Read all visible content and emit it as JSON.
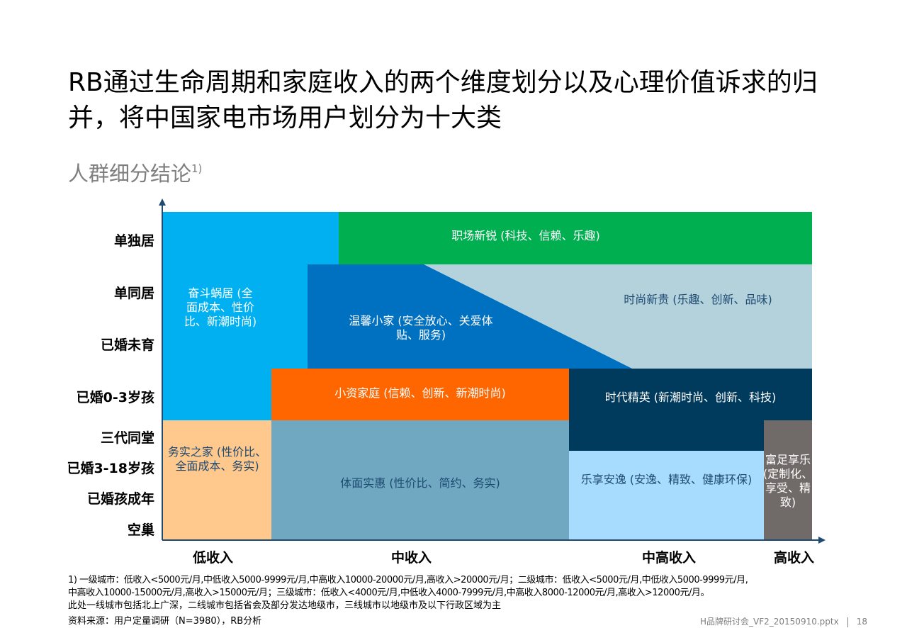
{
  "title": "RB通过生命周期和家庭收入的两个维度划分以及心理价值诉求的归并，将中国家电市场用户划分为十大类",
  "subtitle": "人群细分结论",
  "subtitle_note": "1)",
  "y_axis_labels": [
    "单独居",
    "单同居",
    "已婚未育",
    "已婚0-3岁孩",
    "三代同堂",
    "已婚3-18岁孩",
    "已婚孩成年",
    "空巢"
  ],
  "x_axis_labels": [
    "低收入",
    "中收入",
    "中高收入",
    "高收入"
  ],
  "segments": {
    "zhichang": "职场新锐 (科技、信赖、乐趣)",
    "fendou": [
      "奋斗蜗居 (全",
      "面成本、性价",
      "比、新潮时尚)"
    ],
    "wenxin": [
      "温馨小家 (安全放心、关爱体",
      "贴、服务)"
    ],
    "shishang": "时尚新贵 (乐趣、创新、品味)",
    "xiaozi": "小资家庭 (信赖、创新、新潮时尚)",
    "shidai": "时代精英 (新潮时尚、创新、科技)",
    "wushi": [
      "务实之家 (性价比、",
      "全面成本、务实)"
    ],
    "timian": "体面实惠 (性价比、简约、务实)",
    "lexiang": "乐享安逸 (安逸、精致、健康环保)",
    "fuzu": [
      "富足享乐",
      "(定制化、",
      "享受、精",
      "致)"
    ]
  },
  "colors": {
    "zhichang": "#00b050",
    "fendou": "#00b0f0",
    "wenxin": "#0070c0",
    "shishang": "#b4d2dc",
    "xiaozi": "#ff6600",
    "shidai": "#003a5c",
    "wushi": "#ffc88c",
    "timian": "#6fa8c0",
    "lexiang": "#a8dcff",
    "fuzu": "#706a68",
    "axis": "#1f4a72"
  },
  "footnotes": [
    "1) 一级城市：低收入<5000元/月,中低收入5000-9999元/月,中高收入10000-20000元/月,高收入>20000元/月；二级城市：低收入<5000元/月,中低收入5000-9999元/月,",
    "中高收入10000-15000元/月,高收入>15000元/月；三级城市：低收入<4000元/月,中低收入4000-7999元/月,中高收入8000-12000元/月,高收入>12000元/月。",
    "此处一线城市包括北上广深，二线城市包括省会及部分发达地级市，三线城市以地级市及以下行政区域为主"
  ],
  "source": "资料来源：用户定量调研（N=3980），RB分析",
  "file_name": "H品牌研讨会_VF2_20150910.pptx",
  "page_number": "18"
}
